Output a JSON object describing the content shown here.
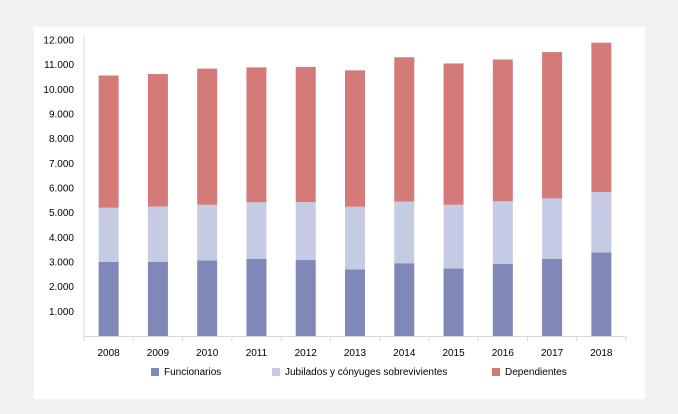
{
  "chart_data": {
    "type": "bar",
    "stacked": true,
    "categories": [
      "2008",
      "2009",
      "2010",
      "2011",
      "2012",
      "2013",
      "2014",
      "2015",
      "2016",
      "2017",
      "2018"
    ],
    "series": [
      {
        "name": "Funcionarios",
        "color": "#7f88b8",
        "values": [
          3000,
          3000,
          3070,
          3130,
          3080,
          2700,
          2950,
          2740,
          2920,
          3130,
          3390
        ]
      },
      {
        "name": "Jubilados y cónyuges sobrevivientes",
        "color": "#c5cbe2",
        "values": [
          2200,
          2250,
          2250,
          2290,
          2350,
          2540,
          2500,
          2580,
          2540,
          2450,
          2450
        ]
      },
      {
        "name": "Dependientes",
        "color": "#d47a78",
        "values": [
          5360,
          5370,
          5520,
          5470,
          5480,
          5530,
          5850,
          5730,
          5750,
          5930,
          6050
        ]
      }
    ],
    "yticks": [
      "1.000",
      "2.000",
      "3.000",
      "4.000",
      "5.000",
      "6.000",
      "7.000",
      "8.000",
      "9.000",
      "10.000",
      "11.000",
      "12.000"
    ],
    "ylim": [
      0,
      12000
    ],
    "grid": false,
    "legend_position": "bottom",
    "title": "",
    "xlabel": "",
    "ylabel": ""
  }
}
